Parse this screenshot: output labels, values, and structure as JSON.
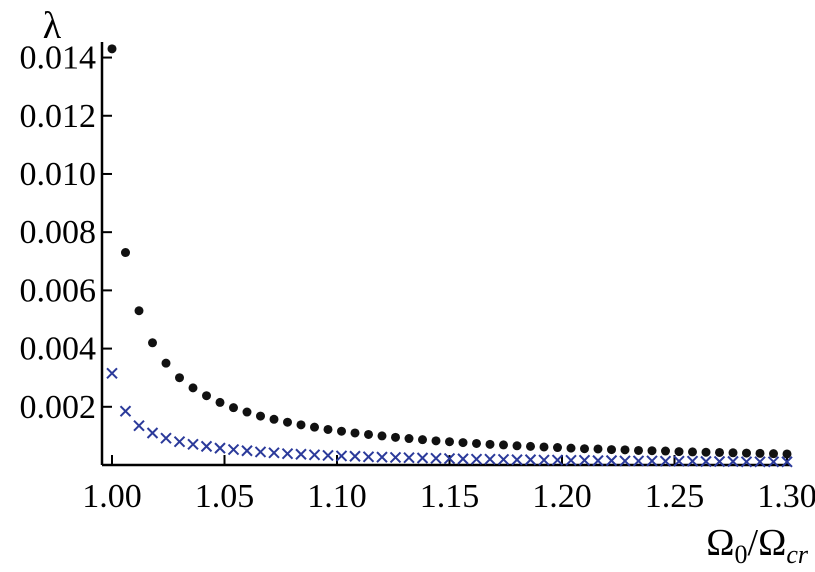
{
  "chart_data": {
    "type": "scatter",
    "xlabel": "Ω0/Ωcr",
    "ylabel": "λ",
    "xlim": [
      1.0,
      1.3
    ],
    "ylim": [
      0.0,
      0.0145
    ],
    "x_ticks": [
      {
        "value": 1.0,
        "label": "1.00"
      },
      {
        "value": 1.05,
        "label": "1.05"
      },
      {
        "value": 1.1,
        "label": "1.10"
      },
      {
        "value": 1.15,
        "label": "1.15"
      },
      {
        "value": 1.2,
        "label": "1.20"
      },
      {
        "value": 1.25,
        "label": "1.25"
      },
      {
        "value": 1.3,
        "label": "1.30"
      }
    ],
    "y_ticks": [
      {
        "value": 0.002,
        "label": "0.002"
      },
      {
        "value": 0.004,
        "label": "0.004"
      },
      {
        "value": 0.006,
        "label": "0.006"
      },
      {
        "value": 0.008,
        "label": "0.008"
      },
      {
        "value": 0.01,
        "label": "0.010"
      },
      {
        "value": 0.012,
        "label": "0.012"
      },
      {
        "value": 0.014,
        "label": "0.014"
      }
    ],
    "grid": false,
    "series": [
      {
        "marker": "dot",
        "color": "#111111",
        "points": [
          [
            1.0,
            0.0143
          ],
          [
            1.006,
            0.0073
          ],
          [
            1.012,
            0.0053
          ],
          [
            1.018,
            0.0042
          ],
          [
            1.024,
            0.0035
          ],
          [
            1.03,
            0.003
          ],
          [
            1.036,
            0.00265
          ],
          [
            1.042,
            0.00238
          ],
          [
            1.048,
            0.00215
          ],
          [
            1.054,
            0.00197
          ],
          [
            1.06,
            0.00182
          ],
          [
            1.066,
            0.00168
          ],
          [
            1.072,
            0.00157
          ],
          [
            1.078,
            0.00147
          ],
          [
            1.084,
            0.00138
          ],
          [
            1.09,
            0.0013
          ],
          [
            1.096,
            0.00122
          ],
          [
            1.102,
            0.00116
          ],
          [
            1.108,
            0.0011
          ],
          [
            1.114,
            0.00105
          ],
          [
            1.12,
            0.001
          ],
          [
            1.126,
            0.00095
          ],
          [
            1.132,
            0.00091
          ],
          [
            1.138,
            0.00087
          ],
          [
            1.144,
            0.00083
          ],
          [
            1.15,
            0.0008
          ],
          [
            1.156,
            0.00077
          ],
          [
            1.162,
            0.00074
          ],
          [
            1.168,
            0.00071
          ],
          [
            1.174,
            0.00069
          ],
          [
            1.18,
            0.00066
          ],
          [
            1.186,
            0.00064
          ],
          [
            1.192,
            0.00062
          ],
          [
            1.198,
            0.0006
          ],
          [
            1.204,
            0.00058
          ],
          [
            1.21,
            0.00056
          ],
          [
            1.216,
            0.00055
          ],
          [
            1.222,
            0.00053
          ],
          [
            1.228,
            0.00052
          ],
          [
            1.234,
            0.0005
          ],
          [
            1.24,
            0.00049
          ],
          [
            1.246,
            0.00048
          ],
          [
            1.252,
            0.00046
          ],
          [
            1.258,
            0.00045
          ],
          [
            1.264,
            0.00044
          ],
          [
            1.27,
            0.00043
          ],
          [
            1.276,
            0.00042
          ],
          [
            1.282,
            0.00041
          ],
          [
            1.288,
            0.0004
          ],
          [
            1.294,
            0.00039
          ],
          [
            1.3,
            0.00038
          ]
        ]
      },
      {
        "marker": "cross",
        "color": "#2b3a9a",
        "points": [
          [
            1.0,
            0.00315
          ],
          [
            1.006,
            0.00185
          ],
          [
            1.012,
            0.00135
          ],
          [
            1.018,
            0.0011
          ],
          [
            1.024,
            0.00092
          ],
          [
            1.03,
            0.0008
          ],
          [
            1.036,
            0.00071
          ],
          [
            1.042,
            0.00064
          ],
          [
            1.048,
            0.00058
          ],
          [
            1.054,
            0.00053
          ],
          [
            1.06,
            0.00049
          ],
          [
            1.066,
            0.00045
          ],
          [
            1.072,
            0.00042
          ],
          [
            1.078,
            0.00039
          ],
          [
            1.084,
            0.00037
          ],
          [
            1.09,
            0.00035
          ],
          [
            1.096,
            0.00033
          ],
          [
            1.102,
            0.00031
          ],
          [
            1.108,
            0.0003
          ],
          [
            1.114,
            0.00028
          ],
          [
            1.12,
            0.00027
          ],
          [
            1.126,
            0.00026
          ],
          [
            1.132,
            0.00025
          ],
          [
            1.138,
            0.00024
          ],
          [
            1.144,
            0.00023
          ],
          [
            1.15,
            0.00022
          ],
          [
            1.156,
            0.00021
          ],
          [
            1.162,
            0.0002
          ],
          [
            1.168,
            0.0002
          ],
          [
            1.174,
            0.00019
          ],
          [
            1.18,
            0.00018
          ],
          [
            1.186,
            0.00018
          ],
          [
            1.192,
            0.00017
          ],
          [
            1.198,
            0.00017
          ],
          [
            1.204,
            0.00016
          ],
          [
            1.21,
            0.00016
          ],
          [
            1.216,
            0.00015
          ],
          [
            1.222,
            0.00015
          ],
          [
            1.228,
            0.00014
          ],
          [
            1.234,
            0.00014
          ],
          [
            1.24,
            0.00014
          ],
          [
            1.246,
            0.00013
          ],
          [
            1.252,
            0.00013
          ],
          [
            1.258,
            0.00013
          ],
          [
            1.264,
            0.00012
          ],
          [
            1.27,
            0.00012
          ],
          [
            1.276,
            0.00012
          ],
          [
            1.282,
            0.00011
          ],
          [
            1.288,
            0.00011
          ],
          [
            1.294,
            0.00011
          ],
          [
            1.3,
            0.00011
          ]
        ]
      }
    ]
  }
}
